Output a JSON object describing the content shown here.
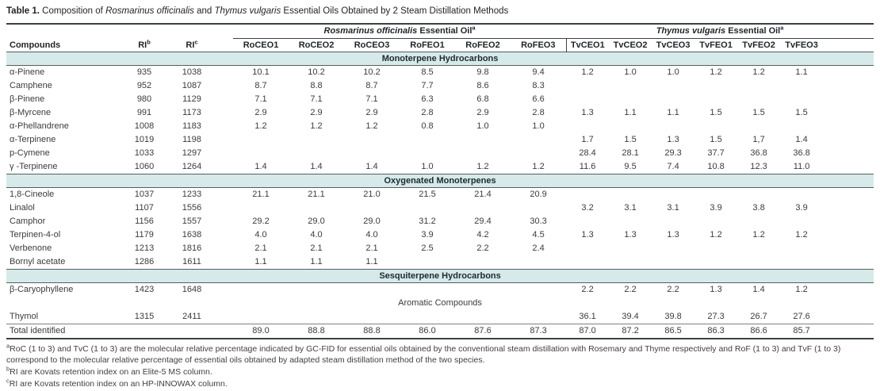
{
  "colors": {
    "band_bg": "#d7eaea",
    "rule": "#3a4146",
    "rule_mid": "#555e63"
  },
  "title": {
    "prefix": "Table 1.",
    "part1": " Composition of ",
    "species1": "Rosmarinus officinalis",
    "part2": " and ",
    "species2": "Thymus vulgaris",
    "part3": " Essential Oils Obtained by 2 Steam Distillation Methods"
  },
  "table": {
    "groups": [
      {
        "species": "Rosmarinus officinalis",
        "rest": " Essential Oil",
        "sup": "a"
      },
      {
        "species": "Thymus vulgaris",
        "rest": " Essential Oil",
        "sup": "a"
      }
    ],
    "columns": {
      "compounds": "Compounds",
      "ri_b": "RI",
      "ri_b_sup": "b",
      "ri_c": "RI",
      "ri_c_sup": "c",
      "ro": [
        "RoCEO1",
        "RoCEO2",
        "RoCEO3",
        "RoFEO1",
        "RoFEO2",
        "RoFEO3"
      ],
      "tv": [
        "TvCEO1",
        "TvCEO2",
        "TvCEO3",
        "TvFEO1",
        "TvFEO2",
        "TvFEO3"
      ]
    },
    "rows": [
      {
        "type": "section",
        "band": true,
        "label": "Monoterpene Hydrocarbons"
      },
      {
        "type": "data",
        "compound": "α-Pinene",
        "ri_b": "935",
        "ri_c": "1038",
        "values": [
          "10.1",
          "10.2",
          "10.2",
          "8.5",
          "9.8",
          "9.4",
          "1.2",
          "1.0",
          "1.0",
          "1.2",
          "1.2",
          "1.1"
        ]
      },
      {
        "type": "data",
        "compound": "Camphene",
        "ri_b": "952",
        "ri_c": "1087",
        "values": [
          "8.7",
          "8.8",
          "8.7",
          "7.7",
          "8.6",
          "8.3",
          "",
          "",
          "",
          "",
          "",
          ""
        ]
      },
      {
        "type": "data",
        "compound": "β-Pinene",
        "ri_b": "980",
        "ri_c": "1129",
        "values": [
          "7.1",
          "7.1",
          "7.1",
          "6.3",
          "6.8",
          "6.6",
          "",
          "",
          "",
          "",
          "",
          ""
        ]
      },
      {
        "type": "data",
        "compound": "β-Myrcene",
        "ri_b": "991",
        "ri_c": "1173",
        "values": [
          "2.9",
          "2.9",
          "2.9",
          "2.8",
          "2.9",
          "2.8",
          "1.3",
          "1.1",
          "1.1",
          "1.5",
          "1.5",
          "1.5"
        ]
      },
      {
        "type": "data",
        "compound": "α-Phellandrene",
        "ri_b": "1008",
        "ri_c": "1183",
        "values": [
          "1.2",
          "1.2",
          "1.2",
          "0.8",
          "1.0",
          "1.0",
          "",
          "",
          "",
          "",
          "",
          ""
        ]
      },
      {
        "type": "data",
        "compound": "α-Terpinene",
        "ri_b": "1019",
        "ri_c": "1198",
        "values": [
          "",
          "",
          "",
          "",
          "",
          "",
          "1.7",
          "1.5",
          "1.3",
          "1.5",
          "1,7",
          "1.4"
        ]
      },
      {
        "type": "data",
        "compound": "p-Cymene",
        "ri_b": "1033",
        "ri_c": "1297",
        "values": [
          "",
          "",
          "",
          "",
          "",
          "",
          "28.4",
          "28.1",
          "29.3",
          "37.7",
          "36.8",
          "36.8"
        ]
      },
      {
        "type": "data",
        "compound": "γ -Terpinene",
        "ri_b": "1060",
        "ri_c": "1264",
        "values": [
          "1.4",
          "1.4",
          "1.4",
          "1.0",
          "1.2",
          "1.2",
          "11.6",
          "9.5",
          "7.4",
          "10.8",
          "12.3",
          "11.0"
        ]
      },
      {
        "type": "section",
        "band": true,
        "label": "Oxygenated Monoterpenes"
      },
      {
        "type": "data",
        "compound": "1,8-Cineole",
        "ri_b": "1037",
        "ri_c": "1233",
        "values": [
          "21.1",
          "21.1",
          "21.0",
          "21.5",
          "21.4",
          "20.9",
          "",
          "",
          "",
          "",
          "",
          ""
        ]
      },
      {
        "type": "data",
        "compound": "Linalol",
        "ri_b": "1107",
        "ri_c": "1556",
        "values": [
          "",
          "",
          "",
          "",
          "",
          "",
          "3.2",
          "3.1",
          "3.1",
          "3.9",
          "3.8",
          "3.9"
        ]
      },
      {
        "type": "data",
        "compound": "Camphor",
        "ri_b": "1156",
        "ri_c": "1557",
        "values": [
          "29.2",
          "29.0",
          "29.0",
          "31.2",
          "29.4",
          "30.3",
          "",
          "",
          "",
          "",
          "",
          ""
        ]
      },
      {
        "type": "data",
        "compound": "Terpinen-4-ol",
        "ri_b": "1179",
        "ri_c": "1638",
        "values": [
          "4.0",
          "4.0",
          "4.0",
          "3.9",
          "4.2",
          "4.5",
          "1.3",
          "1.3",
          "1.3",
          "1.2",
          "1.2",
          "1.2"
        ]
      },
      {
        "type": "data",
        "compound": "Verbenone",
        "ri_b": "1213",
        "ri_c": "1816",
        "values": [
          "2.1",
          "2.1",
          "2.1",
          "2.5",
          "2.2",
          "2.4",
          "",
          "",
          "",
          "",
          "",
          ""
        ]
      },
      {
        "type": "data",
        "compound": "Bornyl acetate",
        "ri_b": "1286",
        "ri_c": "1611",
        "values": [
          "1.1",
          "1.1",
          "1.1",
          "",
          "",
          "",
          "",
          "",
          "",
          "",
          "",
          ""
        ]
      },
      {
        "type": "section",
        "band": true,
        "label": "Sesquiterpene Hydrocarbons"
      },
      {
        "type": "data",
        "compound": "β-Caryophyllene",
        "ri_b": "1423",
        "ri_c": "1648",
        "values": [
          "",
          "",
          "",
          "",
          "",
          "",
          "2.2",
          "2.2",
          "2.2",
          "1.3",
          "1.4",
          "1.2"
        ]
      },
      {
        "type": "section",
        "band": false,
        "label": "Aromatic Compounds"
      },
      {
        "type": "data",
        "compound": "Thymol",
        "ri_b": "1315",
        "ri_c": "2411",
        "values": [
          "",
          "",
          "",
          "",
          "",
          "",
          "36.1",
          "39.4",
          "39.8",
          "27.3",
          "26.7",
          "27.6"
        ]
      },
      {
        "type": "data",
        "total": true,
        "compound": "Total identified",
        "ri_b": "",
        "ri_c": "",
        "values": [
          "89.0",
          "88.8",
          "88.8",
          "86.0",
          "87.6",
          "87.3",
          "87.0",
          "87.2",
          "86.5",
          "86.3",
          "86.6",
          "85.7"
        ]
      }
    ]
  },
  "footnotes": [
    {
      "sup": "a",
      "text": "RoC (1 to 3) and TvC (1 to 3) are the molecular relative percentage indicated by GC-FID for essential oils obtained by the conventional steam distillation with Rosemary and Thyme respectively and RoF (1 to 3) and TvF (1 to 3) correspond to the molecular relative percentage of essential oils obtained by adapted steam distillation method of the two species."
    },
    {
      "sup": "b",
      "text": "RI are Kovats retention index on an Elite-5 MS column."
    },
    {
      "sup": "c",
      "text": "RI are Kovats retention index on an HP-INNOWAX column."
    }
  ]
}
